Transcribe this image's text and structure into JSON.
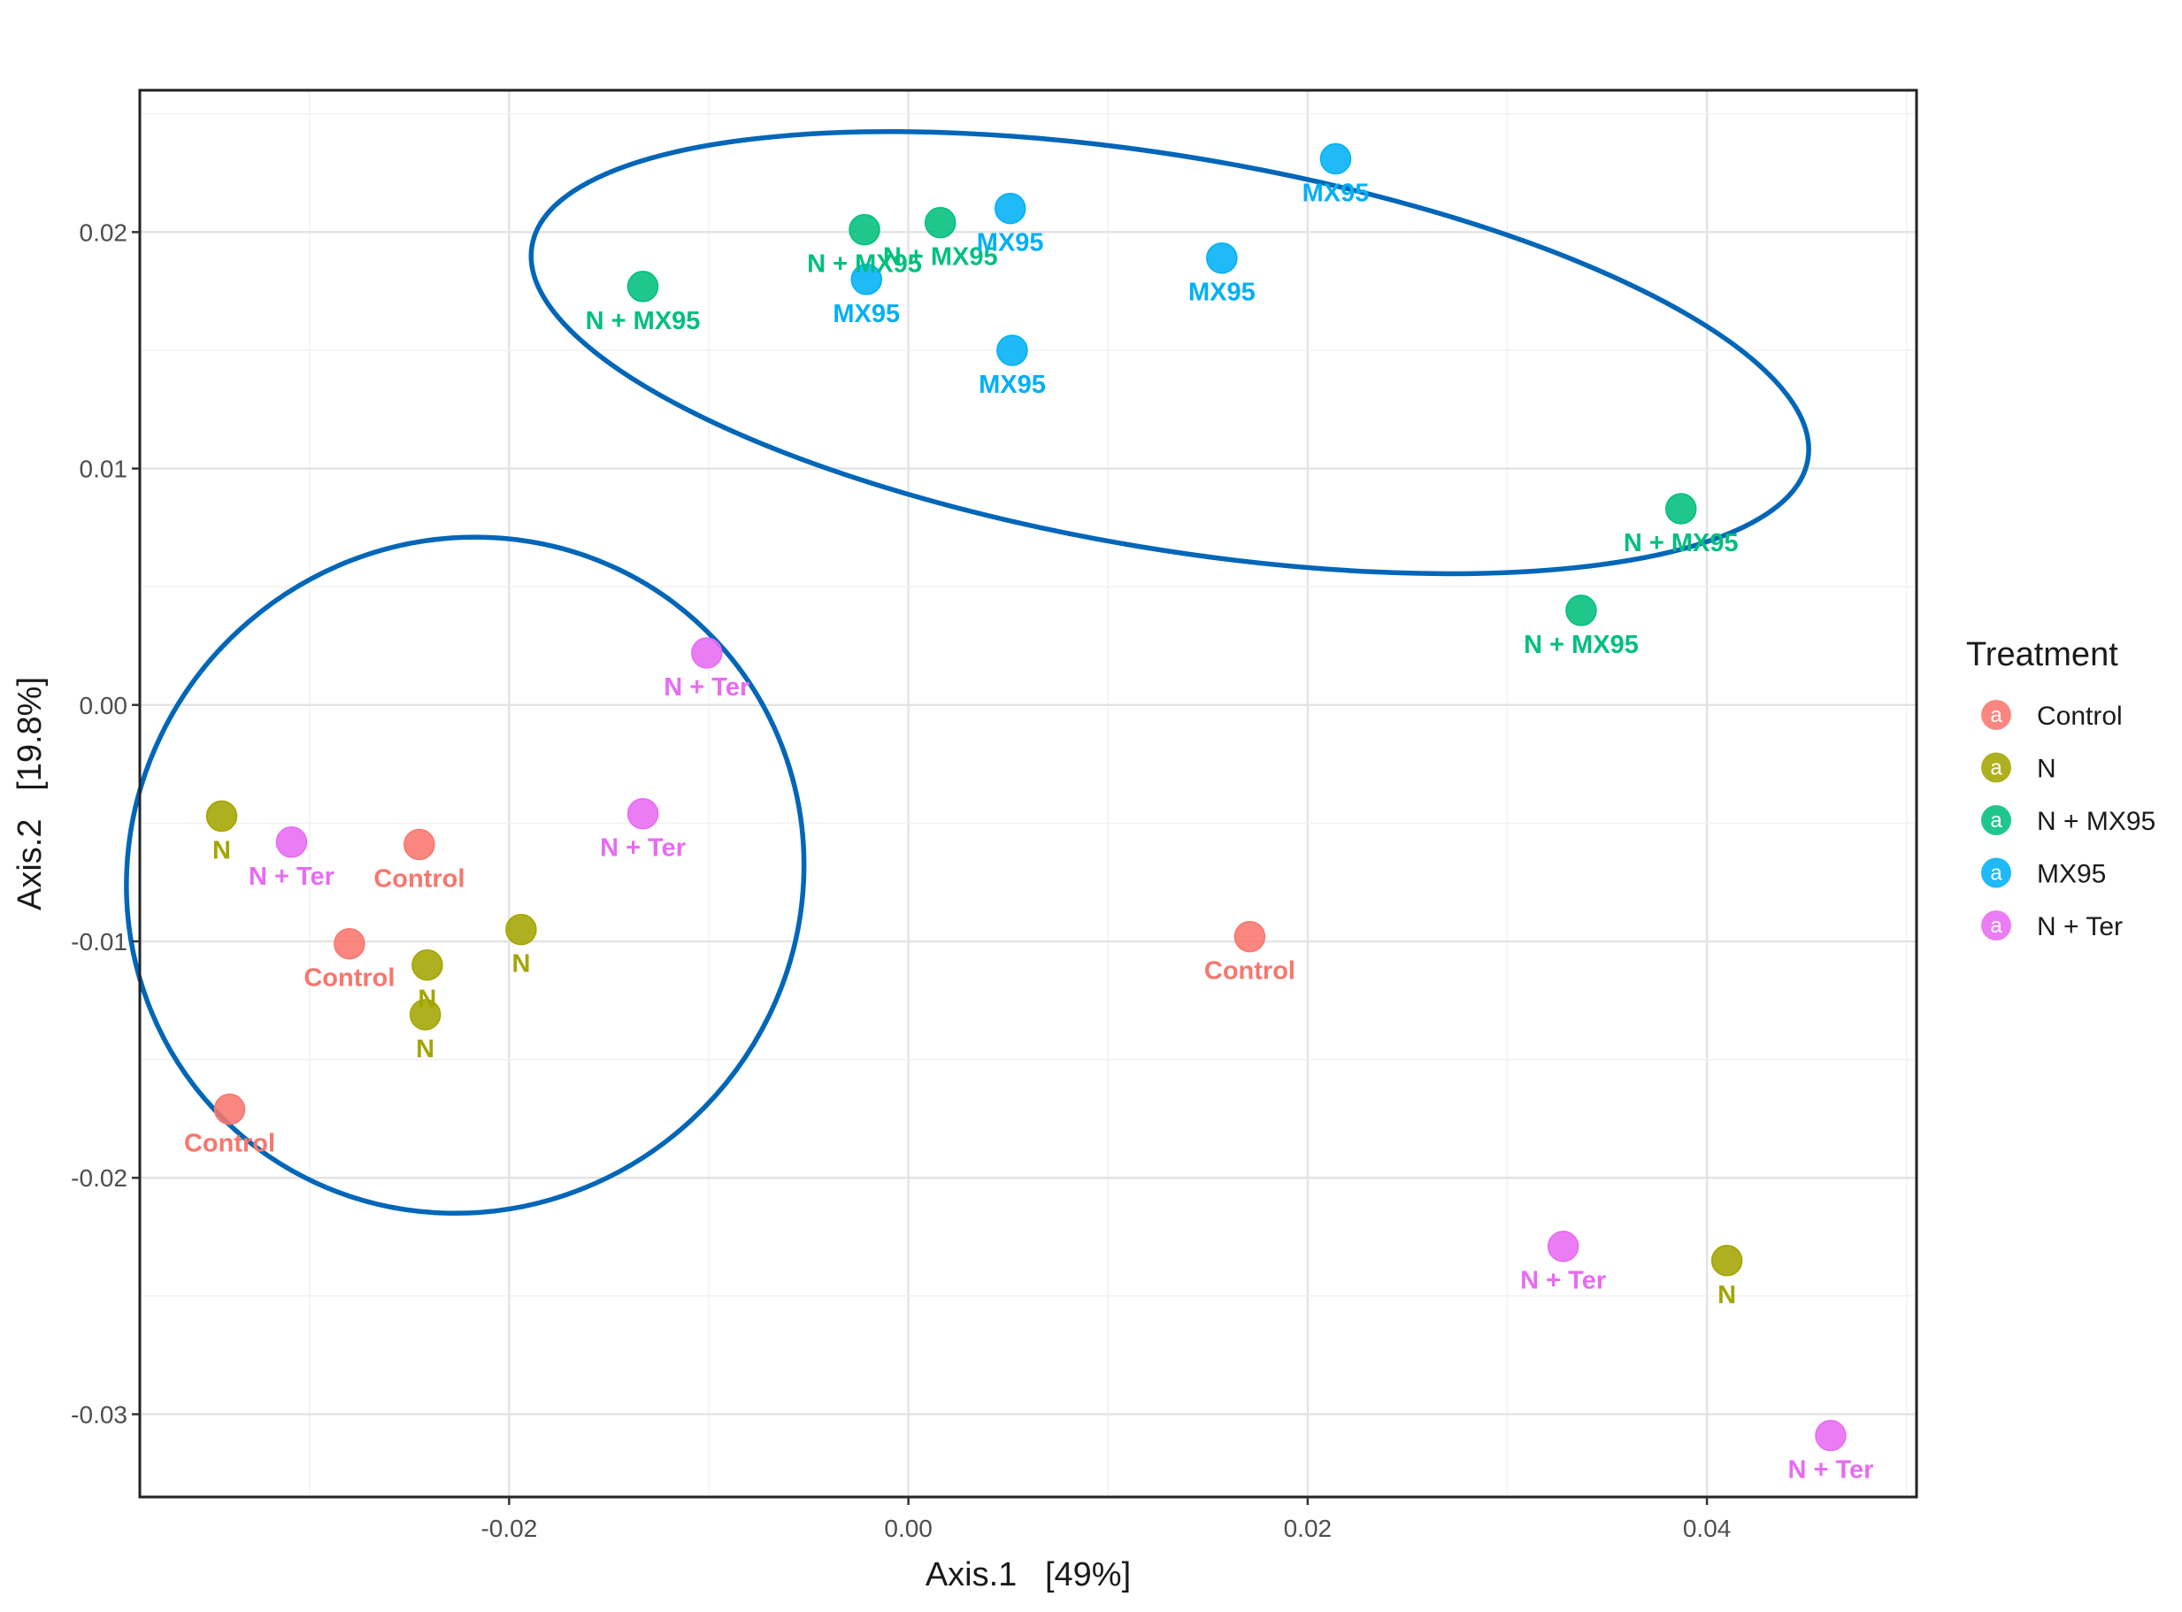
{
  "chart_data": {
    "type": "scatter",
    "title": "",
    "xlabel": "Axis.1   [49%]",
    "ylabel": "Axis.2   [19.8%]",
    "xlim": [
      -0.0385,
      0.0505
    ],
    "ylim": [
      -0.0335,
      0.026
    ],
    "x_ticks": [
      -0.02,
      0.0,
      0.02,
      0.04
    ],
    "x_tick_labels": [
      "-0.02",
      "0.00",
      "0.02",
      "0.04"
    ],
    "y_ticks": [
      -0.03,
      -0.02,
      -0.01,
      0.0,
      0.01,
      0.02
    ],
    "y_tick_labels": [
      "-0.03",
      "-0.02",
      "-0.01",
      "0.00",
      "0.01",
      "0.02"
    ],
    "grid": true,
    "legend": {
      "title": "Treatment",
      "placement": "right",
      "key_glyph": "a",
      "entries": [
        {
          "name": "Control",
          "color": "#F8766D"
        },
        {
          "name": "N",
          "color": "#A3A500"
        },
        {
          "name": "N + MX95",
          "color": "#00BF7D"
        },
        {
          "name": "MX95",
          "color": "#00B0F6"
        },
        {
          "name": "N + Ter",
          "color": "#E76BF3"
        }
      ]
    },
    "series": [
      {
        "name": "Control",
        "color": "#F8766D",
        "label_color": "#F8766D",
        "points": [
          {
            "x": -0.0245,
            "y": -0.0059,
            "label": "Control"
          },
          {
            "x": -0.028,
            "y": -0.0101,
            "label": "Control"
          },
          {
            "x": -0.034,
            "y": -0.0171,
            "label": "Control"
          },
          {
            "x": 0.0171,
            "y": -0.0098,
            "label": "Control"
          }
        ]
      },
      {
        "name": "N",
        "color": "#A3A500",
        "label_color": "#A3A500",
        "points": [
          {
            "x": -0.0344,
            "y": -0.0047,
            "label": "N"
          },
          {
            "x": -0.0194,
            "y": -0.0095,
            "label": "N"
          },
          {
            "x": -0.0241,
            "y": -0.011,
            "label": "N"
          },
          {
            "x": -0.0242,
            "y": -0.0131,
            "label": "N"
          },
          {
            "x": 0.041,
            "y": -0.0235,
            "label": "N"
          }
        ]
      },
      {
        "name": "N + MX95",
        "color": "#00BF7D",
        "label_color": "#00BF7D",
        "points": [
          {
            "x": -0.0133,
            "y": 0.0177,
            "label": "N + MX95"
          },
          {
            "x": -0.0022,
            "y": 0.0201,
            "label": "N + MX95"
          },
          {
            "x": 0.0016,
            "y": 0.0204,
            "label": "N + MX95"
          },
          {
            "x": 0.0387,
            "y": 0.0083,
            "label": "N + MX95"
          },
          {
            "x": 0.0337,
            "y": 0.004,
            "label": "N + MX95"
          }
        ]
      },
      {
        "name": "MX95",
        "color": "#00B0F6",
        "label_color": "#00B0F6",
        "points": [
          {
            "x": 0.0051,
            "y": 0.021,
            "label": "MX95"
          },
          {
            "x": -0.0021,
            "y": 0.018,
            "label": "MX95"
          },
          {
            "x": 0.0052,
            "y": 0.015,
            "label": "MX95"
          },
          {
            "x": 0.0157,
            "y": 0.0189,
            "label": "MX95"
          },
          {
            "x": 0.0214,
            "y": 0.0231,
            "label": "MX95"
          }
        ]
      },
      {
        "name": "N + Ter",
        "color": "#E76BF3",
        "label_color": "#E76BF3",
        "points": [
          {
            "x": -0.0101,
            "y": 0.0022,
            "label": "N + Ter"
          },
          {
            "x": -0.0133,
            "y": -0.0046,
            "label": "N + Ter"
          },
          {
            "x": -0.0309,
            "y": -0.0058,
            "label": "N + Ter"
          },
          {
            "x": 0.0328,
            "y": -0.0229,
            "label": "N + Ter"
          },
          {
            "x": 0.0462,
            "y": -0.0309,
            "label": "N + Ter"
          }
        ]
      }
    ],
    "annotations": {
      "ellipse_color": "#0066B8",
      "ellipses": [
        {
          "center_x": -0.0222,
          "center_y": -0.0072,
          "radius_x": 0.0172,
          "radius_y": 0.0141,
          "rotation_deg": -43
        },
        {
          "center_x": 0.0131,
          "center_y": 0.0149,
          "radius_x": 0.0324,
          "radius_y": 0.0083,
          "rotation_deg": 9.5
        }
      ]
    }
  }
}
